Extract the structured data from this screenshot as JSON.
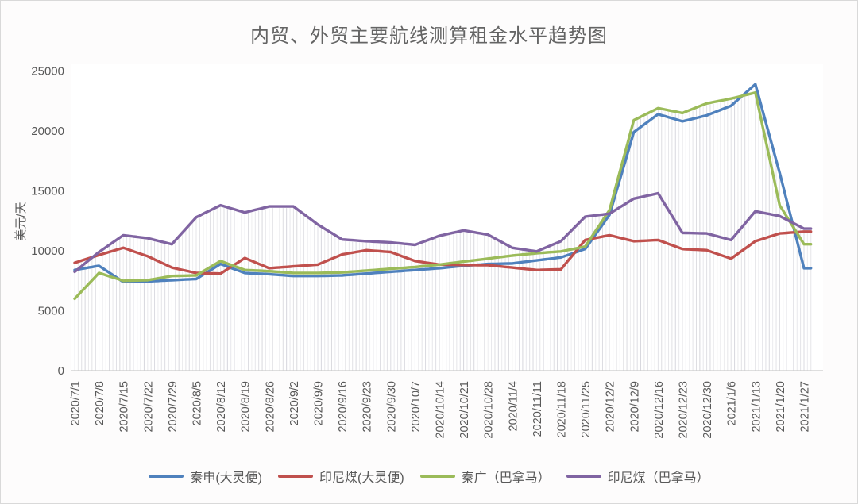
{
  "title": "内贸、外贸主要航线测算租金水平趋势图",
  "chart_data": {
    "type": "line",
    "title": "内贸、外贸主要航线测算租金水平趋势图",
    "xlabel": "",
    "ylabel": "美元/天",
    "ylim": [
      0,
      25000
    ],
    "yticks": [
      "0",
      "5000",
      "10000",
      "15000",
      "20000",
      "25000"
    ],
    "grid": false,
    "drop_lines": true,
    "legend_position": "bottom",
    "x_tick_rotation": -90,
    "text_color": "#595959",
    "axis_color": "#c9c9c9",
    "dropline_color": "#c7c7cf",
    "x": [
      "2020/7/1",
      "2020/7/8",
      "2020/7/15",
      "2020/7/22",
      "2020/7/29",
      "2020/8/5",
      "2020/8/12",
      "2020/8/19",
      "2020/8/26",
      "2020/9/2",
      "2020/9/9",
      "2020/9/16",
      "2020/9/23",
      "2020/9/30",
      "2020/10/7",
      "2020/10/14",
      "2020/10/21",
      "2020/10/28",
      "2020/11/4",
      "2020/11/11",
      "2020/11/18",
      "2020/11/25",
      "2020/12/2",
      "2020/12/9",
      "2020/12/16",
      "2020/12/23",
      "2020/12/30",
      "2021/1/6",
      "2021/1/13",
      "2021/1/20",
      "2021/1/27"
    ],
    "series": [
      {
        "name": "秦申(大灵便)",
        "color": "#4F81BD",
        "values": [
          8400,
          8750,
          7400,
          7450,
          7550,
          7650,
          8900,
          8150,
          8050,
          7900,
          7900,
          7950,
          8100,
          8250,
          8400,
          8550,
          8750,
          8900,
          8950,
          9200,
          9450,
          10150,
          13000,
          19900,
          21400,
          20800,
          21300,
          22100,
          23900,
          16500,
          8550
        ]
      },
      {
        "name": "印尼煤(大灵便)",
        "color": "#C0504D",
        "values": [
          9000,
          9650,
          10250,
          9550,
          8600,
          8150,
          8100,
          9400,
          8550,
          8700,
          8850,
          9700,
          10050,
          9900,
          9150,
          8850,
          8820,
          8800,
          8600,
          8400,
          8450,
          10900,
          11300,
          10800,
          10900,
          10150,
          10050,
          9350,
          10800,
          11450,
          11600
        ]
      },
      {
        "name": "秦广（巴拿马）",
        "color": "#9BBB59",
        "values": [
          6000,
          8150,
          7500,
          7550,
          7900,
          7950,
          9150,
          8400,
          8300,
          8150,
          8150,
          8200,
          8350,
          8500,
          8650,
          8850,
          9100,
          9350,
          9600,
          9800,
          9950,
          10350,
          13400,
          20900,
          21900,
          21500,
          22300,
          22700,
          23200,
          13800,
          10550
        ]
      },
      {
        "name": "印尼煤（巴拿马）",
        "color": "#8064A2",
        "values": [
          8250,
          9900,
          11300,
          11050,
          10550,
          12800,
          13800,
          13200,
          13700,
          13700,
          12200,
          10950,
          10800,
          10700,
          10500,
          11250,
          11700,
          11350,
          10250,
          9950,
          10800,
          12850,
          13100,
          14350,
          14800,
          11500,
          11450,
          10900,
          13300,
          12900,
          11850
        ]
      }
    ]
  }
}
